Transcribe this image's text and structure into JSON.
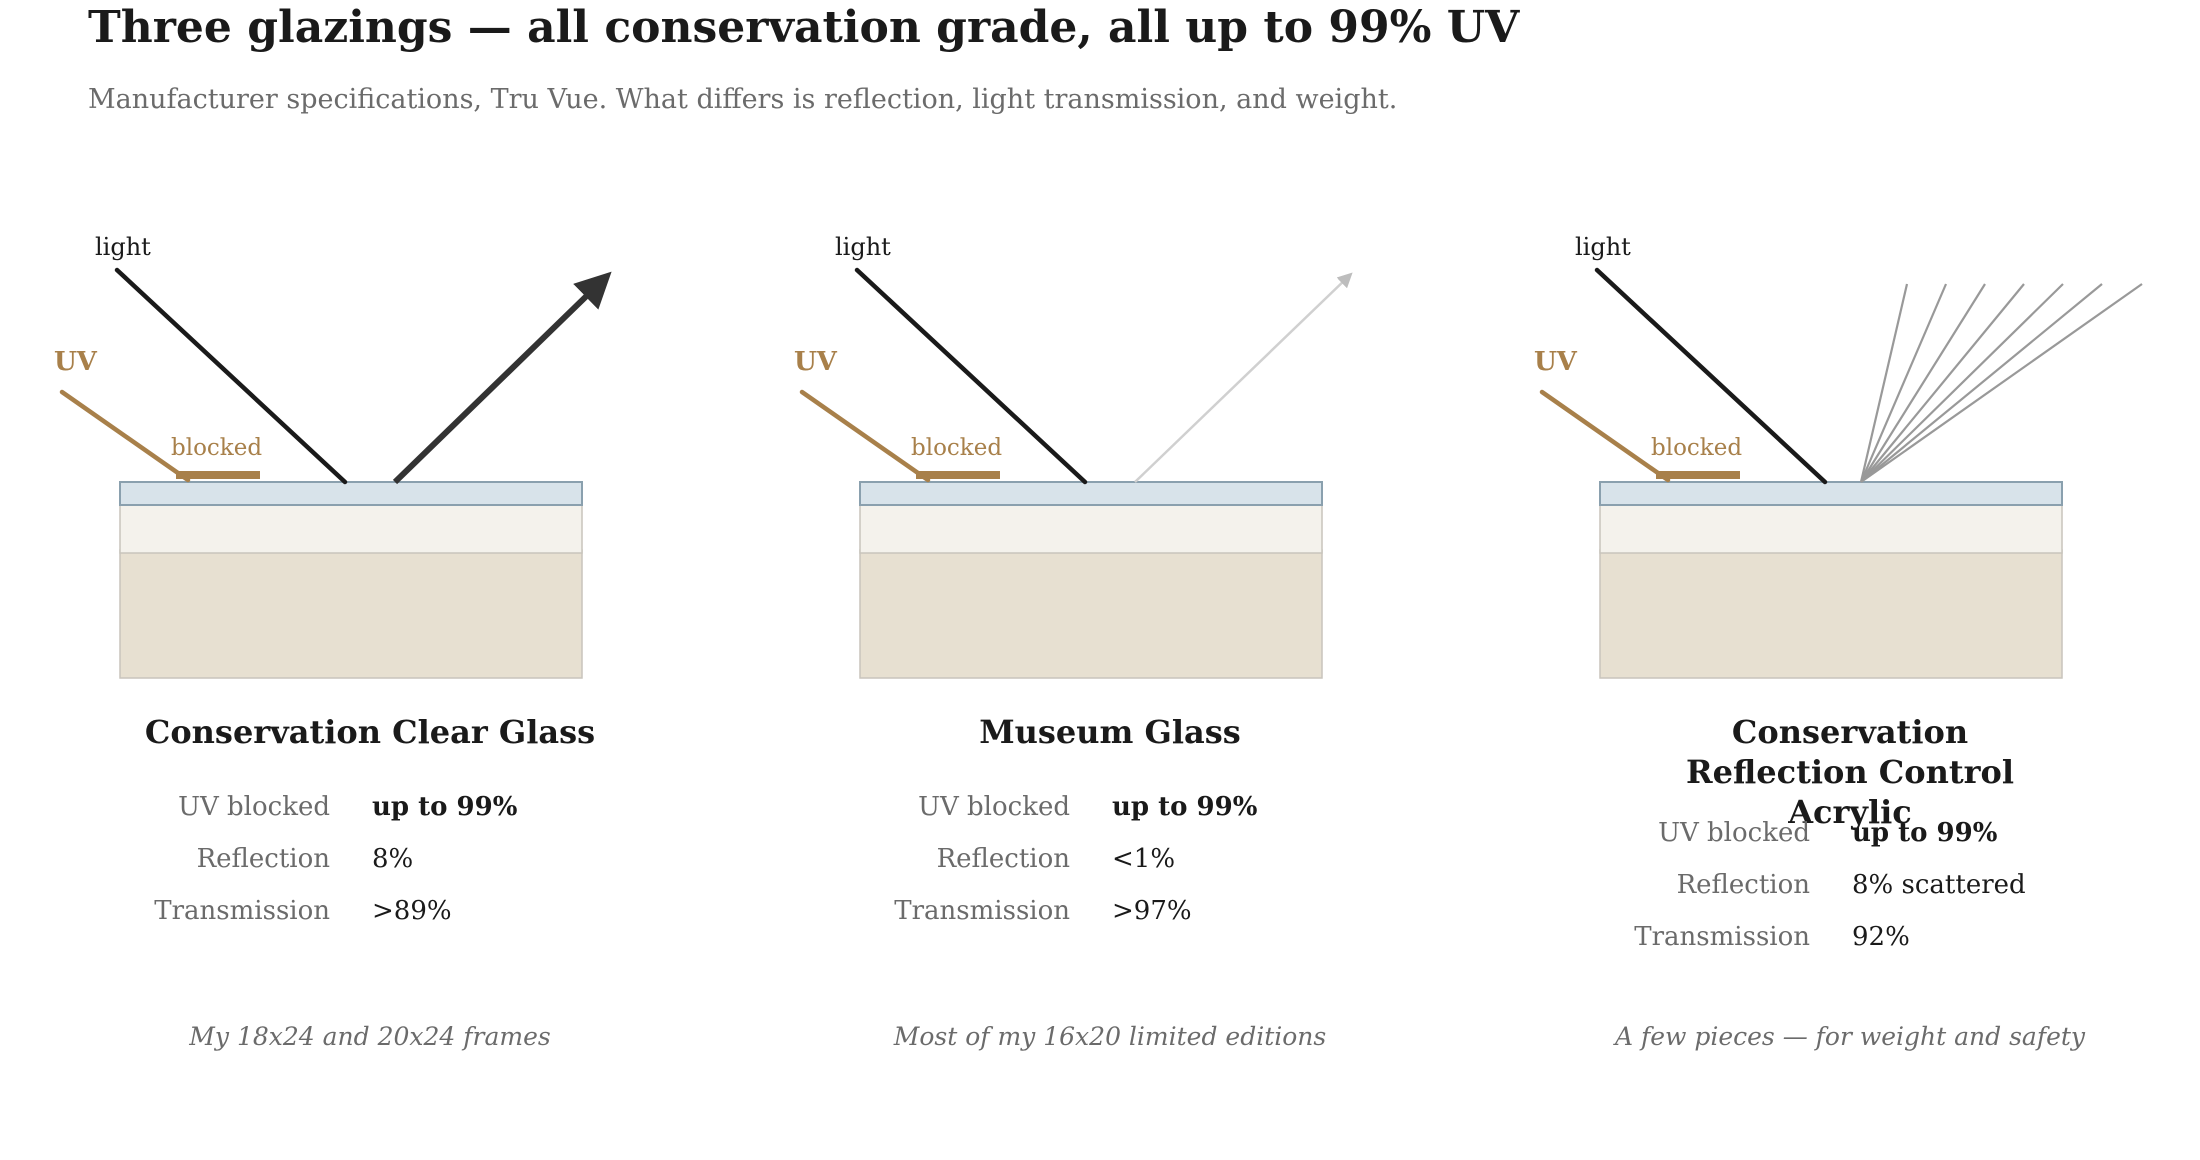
{
  "title": "Three glazings — all conservation grade, all up to 99% UV",
  "subtitle": "Manufacturer specifications, Tru Vue. What differs is reflection, light transmission, and weight.",
  "diagram_labels": {
    "light": "light",
    "uv": "UV",
    "blocked": "blocked"
  },
  "colors": {
    "uv": "#a8804a",
    "light": "#1a1a1a",
    "glass_fill": "#d8e3ea",
    "glass_edge": "#8aa0ae",
    "mat": "#f4f2ec",
    "artwork": "#e7e0d1"
  },
  "glazings": [
    {
      "name": "Conservation Clear Glass",
      "reflection_style": "specular-strong",
      "specs": [
        {
          "label": "UV blocked",
          "value": "up to 99%",
          "bold": true
        },
        {
          "label": "Reflection",
          "value": "8%",
          "bold": false
        },
        {
          "label": "Transmission",
          "value": ">89%",
          "bold": false
        }
      ],
      "usage": "My 18x24 and 20x24 frames"
    },
    {
      "name": "Museum Glass",
      "reflection_style": "specular-faint",
      "specs": [
        {
          "label": "UV blocked",
          "value": "up to 99%",
          "bold": true
        },
        {
          "label": "Reflection",
          "value": "<1%",
          "bold": false
        },
        {
          "label": "Transmission",
          "value": ">97%",
          "bold": false
        }
      ],
      "usage": "Most of my 16x20 limited editions"
    },
    {
      "name": "Conservation Reflection Control Acrylic",
      "reflection_style": "scattered",
      "specs": [
        {
          "label": "UV blocked",
          "value": "up to 99%",
          "bold": true
        },
        {
          "label": "Reflection",
          "value": "8% scattered",
          "bold": false
        },
        {
          "label": "Transmission",
          "value": "92%",
          "bold": false
        }
      ],
      "usage": "A few pieces — for weight and safety"
    }
  ]
}
